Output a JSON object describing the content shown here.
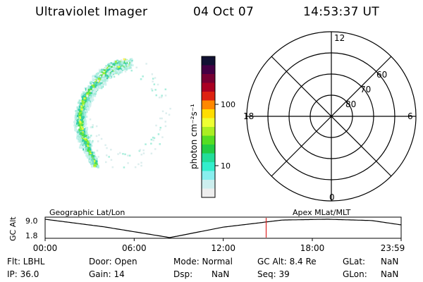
{
  "header": {
    "title": "Ultraviolet Imager",
    "date": "04 Oct 07",
    "time": "14:53:37 UT"
  },
  "colorbar": {
    "unit_label": "photon cm⁻²s⁻¹",
    "tick_labels": [
      "100",
      "10"
    ],
    "colors": [
      "#111133",
      "#440044",
      "#770033",
      "#aa0022",
      "#dd2211",
      "#ff8800",
      "#ffdd00",
      "#eeff33",
      "#aaee22",
      "#55dd22",
      "#22cc44",
      "#22dd99",
      "#33eecc",
      "#88eeee",
      "#cceeee",
      "#eeeeee"
    ]
  },
  "polar": {
    "mlt_labels": [
      "12",
      "18",
      "6",
      "0"
    ],
    "lat_labels": [
      "60",
      "70",
      "80"
    ]
  },
  "timeline": {
    "ylabel": "GC Alt",
    "yticks": [
      "9.0",
      "1.8"
    ],
    "left_title": "Geographic Lat/Lon",
    "right_title": "Apex  MLat/MLT",
    "xticks": [
      "00:00",
      "06:00",
      "12:00",
      "18:00",
      "23:59"
    ],
    "marker_color": "#dd2222",
    "altitude_curve": {
      "x": [
        0,
        4,
        8.4,
        12,
        16,
        19,
        22,
        23.98
      ],
      "y": [
        9.0,
        6.0,
        1.8,
        5.9,
        8.7,
        9.0,
        8.5,
        6.8
      ]
    },
    "marker_time": 14.89
  },
  "footer": {
    "filter": "Flt: LBHL",
    "ip": "IP: 36.0",
    "door": "Door: Open",
    "gain": "Gain: 14",
    "mode": "Mode: Normal",
    "dsp_label": "Dsp:",
    "dsp_value": "NaN",
    "gc_alt": "GC Alt: 8.4 Re",
    "seq": "Seq: 39",
    "glat_label": "GLat:",
    "glat_value": "NaN",
    "glon_label": "GLon:",
    "glon_value": "NaN"
  }
}
